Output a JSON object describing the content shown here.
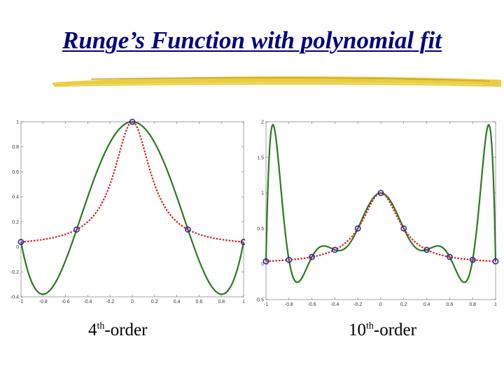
{
  "title": "Runge’s Function with polynomial fit",
  "colors": {
    "title": "#000080",
    "swoosh": "#e8c830",
    "fit_curve": "#2a7a1e",
    "runge_curve": "#d81e1e",
    "markers": "#2a2aa0"
  },
  "captions": [
    {
      "prefix": "4",
      "sup": "th",
      "suffix": "-order"
    },
    {
      "prefix": "10",
      "sup": "th",
      "suffix": "-order"
    }
  ],
  "chart_data": [
    {
      "type": "line",
      "degree": 4,
      "xlim": [
        -1,
        1
      ],
      "ylim": [
        -0.4,
        1
      ],
      "xticks": [
        -1,
        -0.8,
        -0.6,
        -0.4,
        -0.2,
        0,
        0.2,
        0.4,
        0.6,
        0.8,
        1
      ],
      "xtick_labels": [
        "-1",
        "-0.8",
        "-0.6",
        "-0.4",
        "-0.2",
        "0",
        "0.2",
        "0.4",
        "0.6",
        "0.8",
        "1"
      ],
      "yticks": [
        -0.4,
        -0.2,
        0,
        0.2,
        0.4,
        0.6,
        0.8,
        1
      ],
      "ytick_labels": [
        "-0.4",
        "-0.2",
        "0",
        "0.2",
        "0.4",
        "0.6",
        "0.8",
        "1"
      ],
      "nodes": {
        "x": [
          -1,
          -0.5,
          0,
          0.5,
          1
        ],
        "y": [
          0.0385,
          0.1379,
          1,
          0.1379,
          0.0385
        ]
      },
      "series": [
        {
          "style": "dotted",
          "color": "#d81e1e",
          "function": "1/(1+25x^2)"
        },
        {
          "style": "solid",
          "color": "#2a7a1e",
          "function": "interpolating polynomial, degree 4"
        }
      ],
      "grid": false
    },
    {
      "type": "line",
      "degree": 10,
      "xlim": [
        -1,
        1
      ],
      "ylim": [
        -0.5,
        2
      ],
      "xticks": [
        -1,
        -0.8,
        -0.6,
        -0.4,
        -0.2,
        0,
        0.2,
        0.4,
        0.6,
        0.8,
        1
      ],
      "xtick_labels": [
        "-1",
        "-0.8",
        "-0.6",
        "-0.4",
        "-0.2",
        "0",
        "0.2",
        "0.4",
        "0.6",
        "0.8",
        "1"
      ],
      "yticks": [
        -0.5,
        0,
        0.5,
        1,
        1.5,
        2
      ],
      "ytick_labels": [
        "-0.5",
        "0",
        "0.5",
        "1",
        "1.5",
        "2"
      ],
      "nodes": {
        "x": [
          -1,
          -0.8,
          -0.6,
          -0.4,
          -0.2,
          0,
          0.2,
          0.4,
          0.6,
          0.8,
          1
        ],
        "y": [
          0.0385,
          0.0588,
          0.1,
          0.2,
          0.5,
          1,
          0.5,
          0.2,
          0.1,
          0.0588,
          0.0385
        ]
      },
      "series": [
        {
          "style": "dotted",
          "color": "#d81e1e",
          "function": "1/(1+25x^2)"
        },
        {
          "style": "solid",
          "color": "#2a7a1e",
          "function": "interpolating polynomial, degree 10"
        }
      ],
      "grid": false
    }
  ]
}
